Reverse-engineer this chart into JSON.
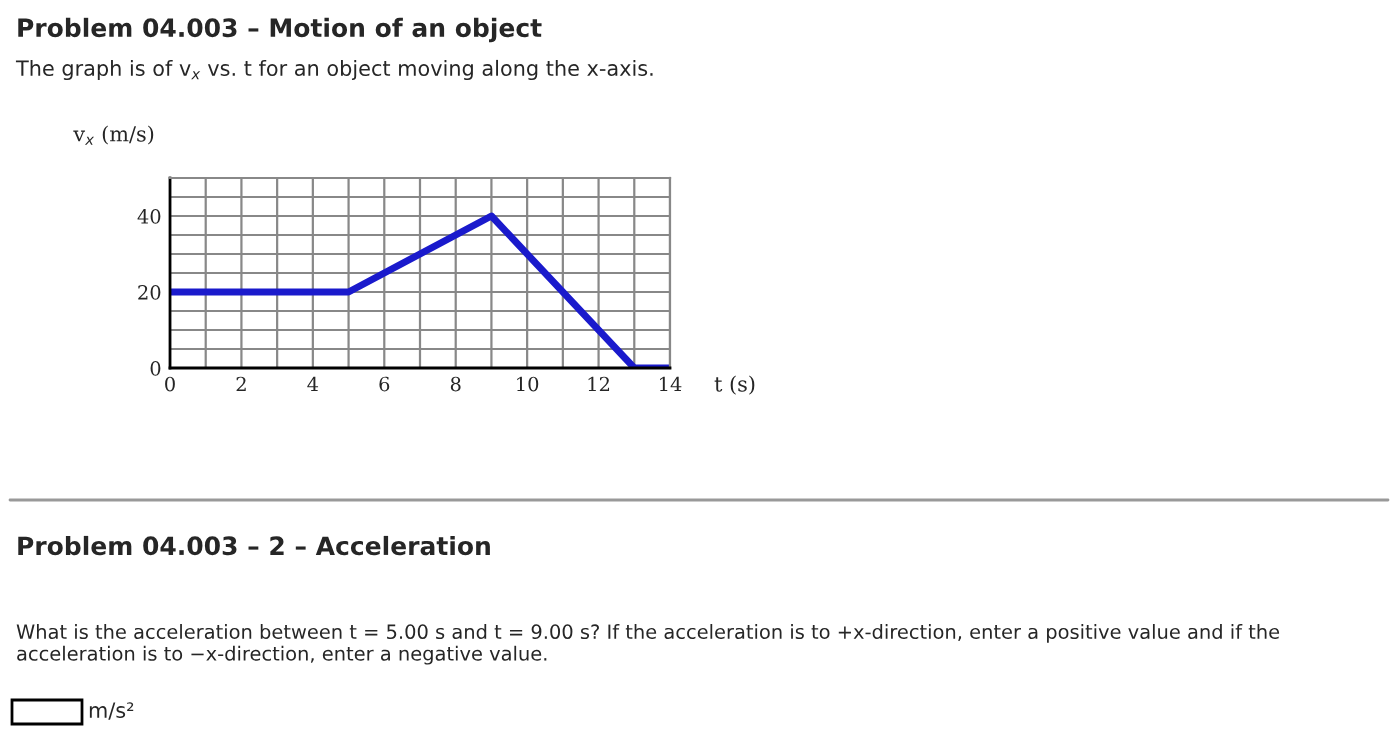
{
  "chart_data": {
    "type": "line",
    "title": "Problem 04.003 – Motion of an object",
    "subtitle": "The graph is of v$_{x}$ vs. t for an object moving along the x-axis.",
    "xlabel": "t (s)",
    "ylabel": "v$_{x}$ (m/s)",
    "x": [
      0,
      5,
      9,
      13,
      14
    ],
    "series": [
      {
        "color": "#1a1acc",
        "values": [
          20,
          20,
          40,
          0,
          0
        ]
      }
    ],
    "xlim": [
      0,
      14
    ],
    "ylim": [
      0,
      50
    ],
    "xticks": [
      0,
      {
        "value": 1,
        "label": null
      },
      2,
      {
        "value": 3,
        "label": null
      },
      4,
      {
        "value": 5,
        "label": null
      },
      6,
      {
        "value": 7,
        "label": null
      },
      8,
      {
        "value": 9,
        "label": null
      },
      10,
      {
        "value": 11,
        "label": null
      },
      12,
      {
        "value": 13,
        "label": null
      },
      14
    ],
    "yticks": [
      0,
      {
        "value": 5,
        "label": null
      },
      {
        "value": 10,
        "label": null
      },
      {
        "value": 15,
        "label": null
      },
      20,
      {
        "value": 25,
        "label": null
      },
      {
        "value": 30,
        "label": null
      },
      {
        "value": 35,
        "label": null
      },
      40,
      {
        "value": 45,
        "label": null
      },
      {
        "value": 50,
        "label": null
      }
    ],
    "grid": true,
    "legend": false,
    "marker": "none",
    "line_style": "solid",
    "annotations": [
      "Problem 04.003 – 2 – Acceleration",
      "What is the acceleration between t = 5.00 s and t = 9.00 s? If the acceleration is to +x-direction, enter a positive value and if the acceleration is to −x-direction, enter a negative value.",
      "m/s²"
    ]
  }
}
